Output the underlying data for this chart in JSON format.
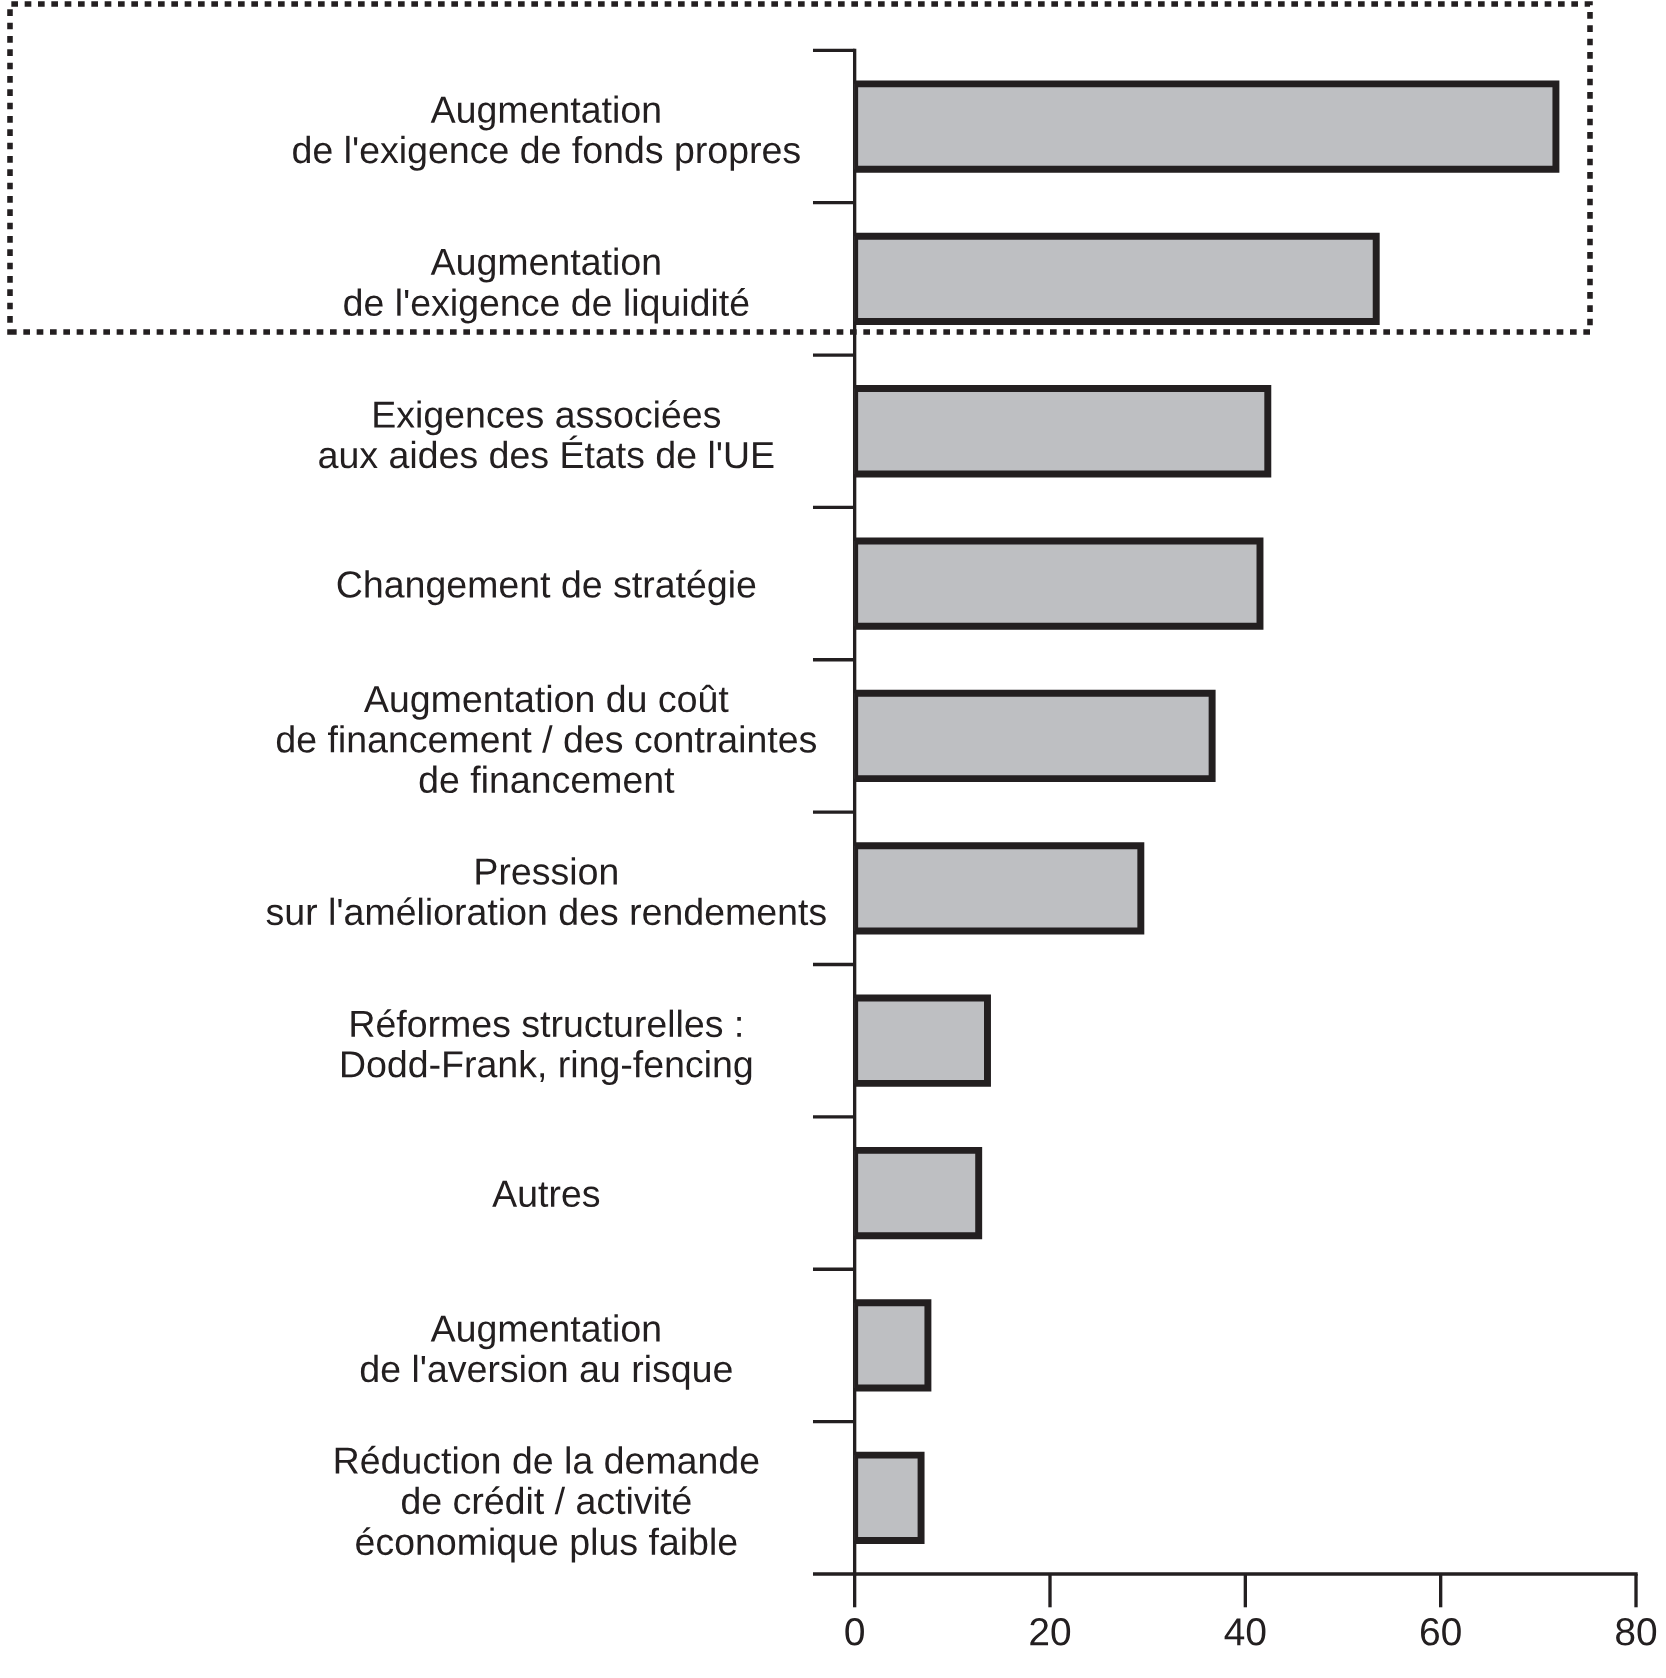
{
  "chart_data": {
    "type": "bar",
    "orientation": "horizontal",
    "categories": [
      "Augmentation\nde l'exigence de fonds propres",
      "Augmentation\nde l'exigence de liquidité",
      "Exigences associées\naux aides des États de l'UE",
      "Changement de stratégie",
      "Augmentation du coût\nde financement / des contraintes\nde financement",
      "Pression\nsur l'amélioration des rendements",
      "Réformes structurelles :\nDodd-Frank, ring-fencing",
      "Autres",
      "Augmentation\nde l'aversion au risque",
      "Réduction de la demande\nde crédit / activité\néconomique plus faible"
    ],
    "values": [
      71.8,
      53.4,
      42.3,
      41.5,
      36.6,
      29.3,
      13.6,
      12.7,
      7.5,
      6.8
    ],
    "color": "#bebfc2",
    "xlim": [
      0,
      80
    ],
    "xticks": [
      0,
      20,
      40,
      60,
      80
    ],
    "grid": false,
    "legend": false
  }
}
